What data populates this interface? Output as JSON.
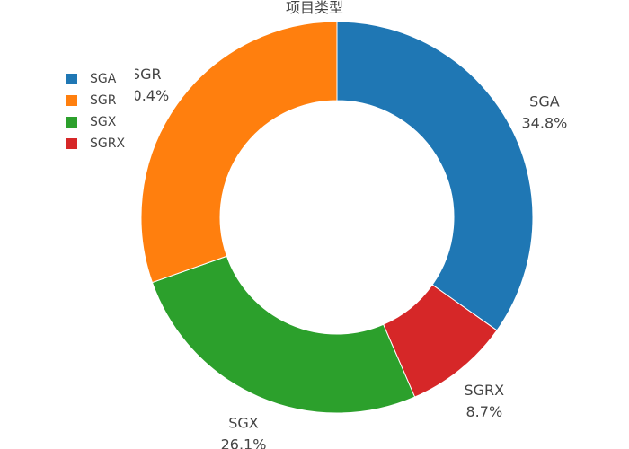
{
  "chart_data": {
    "type": "pie",
    "hole": true,
    "title": "项目类型",
    "labels": [
      "SGA",
      "SGRX",
      "SGX",
      "SGR"
    ],
    "values": [
      34.8,
      8.7,
      26.1,
      30.4
    ],
    "percent_labels": [
      "34.8%",
      "8.7%",
      "26.1%",
      "30.4%"
    ],
    "colors": [
      "#1f77b4",
      "#d62728",
      "#2ca02c",
      "#ff7f0e"
    ],
    "legend": {
      "placement": "top-left",
      "items": [
        {
          "label": "SGA",
          "color": "#1f77b4"
        },
        {
          "label": "SGR",
          "color": "#ff7f0e"
        },
        {
          "label": "SGX",
          "color": "#2ca02c"
        },
        {
          "label": "SGRX",
          "color": "#d62728"
        }
      ]
    }
  }
}
